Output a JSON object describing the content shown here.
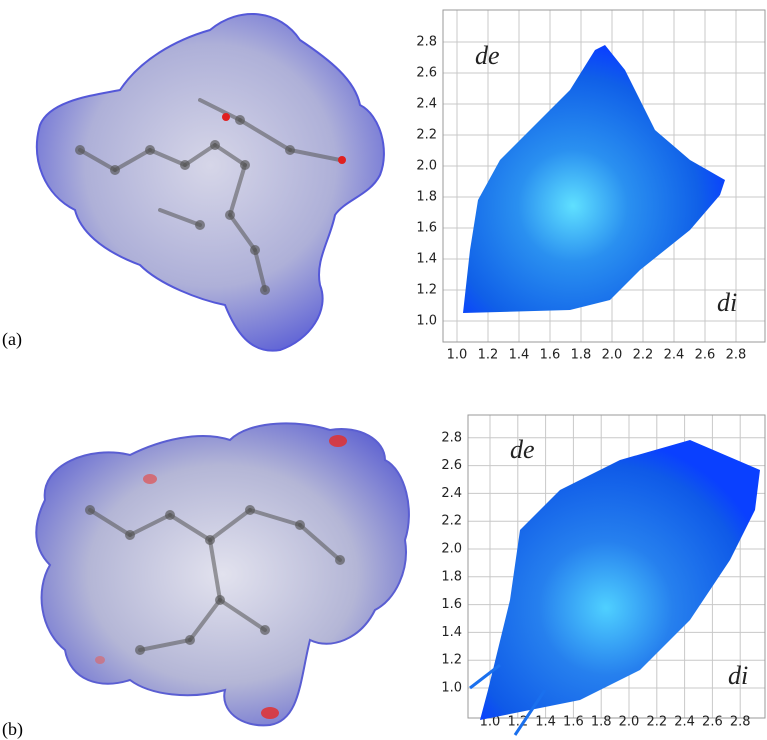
{
  "panels": [
    {
      "label": "(a)",
      "plot": {
        "y_axis_label": "de",
        "x_axis_label": "di",
        "y_ticks": [
          "1.0",
          "1.2",
          "1.4",
          "1.6",
          "1.8",
          "2.0",
          "2.2",
          "2.4",
          "2.6",
          "2.8"
        ],
        "x_ticks": [
          "1.0",
          "1.2",
          "1.4",
          "1.6",
          "1.8",
          "2.0",
          "2.2",
          "2.4",
          "2.6",
          "2.8"
        ]
      }
    },
    {
      "label": "(b)",
      "plot": {
        "y_axis_label": "de",
        "x_axis_label": "di",
        "y_ticks": [
          "1.0",
          "1.2",
          "1.4",
          "1.6",
          "1.8",
          "2.0",
          "2.2",
          "2.4",
          "2.6",
          "2.8"
        ],
        "x_ticks": [
          "1.0",
          "1.2",
          "1.4",
          "1.6",
          "1.8",
          "2.0",
          "2.2",
          "2.4",
          "2.6",
          "2.8"
        ]
      }
    }
  ]
}
